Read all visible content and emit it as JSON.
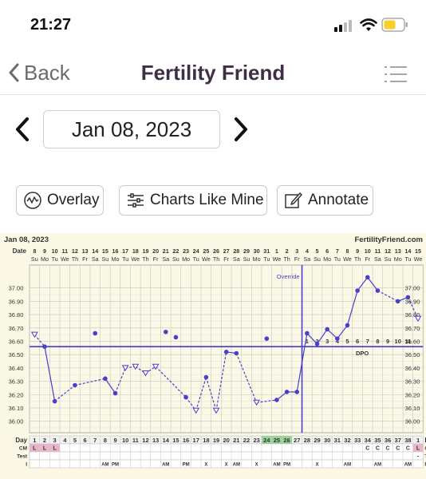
{
  "status_bar": {
    "time": "21:27"
  },
  "nav": {
    "back_label": "Back",
    "title": "Fertility Friend"
  },
  "date_nav": {
    "date": "Jan 08, 2023"
  },
  "actions": {
    "overlay_label": "Overlay",
    "charts_like_mine_label": "Charts Like Mine",
    "annotate_label": "Annotate"
  },
  "chart_header": {
    "start_date": "Jan 08, 2023",
    "brand": "FertilityFriend.com",
    "row_date_label": "Date",
    "override_label": "Override",
    "dpo_label": "DPO"
  },
  "colors": {
    "title": "#3e2f45",
    "chart_bg": "#fbf8e6",
    "line": "#4a3fc8",
    "grid": "#c6c6c6",
    "cm_pink": "#e7b6c9",
    "green": "#9bd49b"
  },
  "chart_data": {
    "type": "line",
    "ylim": [
      35.95,
      37.1
    ],
    "yticks": [
      "37.00",
      "36.90",
      "36.80",
      "36.70",
      "36.60",
      "36.50",
      "36.40",
      "36.30",
      "36.20",
      "36.10",
      "36.00"
    ],
    "date_numbers": [
      "8",
      "9",
      "10",
      "11",
      "12",
      "13",
      "14",
      "15",
      "16",
      "17",
      "18",
      "19",
      "20",
      "21",
      "22",
      "23",
      "24",
      "25",
      "26",
      "27",
      "28",
      "29",
      "30",
      "31",
      "1",
      "2",
      "3",
      "4",
      "5",
      "6",
      "7",
      "8",
      "9",
      "10",
      "11",
      "12",
      "13",
      "14",
      "15"
    ],
    "weekdays": [
      "Su",
      "Mo",
      "Tu",
      "We",
      "Th",
      "Fr",
      "Sa",
      "Su",
      "Mo",
      "Tu",
      "We",
      "Th",
      "Fr",
      "Sa",
      "Su",
      "Mo",
      "Tu",
      "We",
      "Th",
      "Fr",
      "Sa",
      "Su",
      "Mo",
      "Tu",
      "We",
      "Th",
      "Fr",
      "Sa",
      "Su",
      "Mo",
      "Tu",
      "We",
      "Th",
      "Fr",
      "Sa",
      "Su",
      "Mo",
      "Tu",
      "We"
    ],
    "days": [
      "1",
      "2",
      "3",
      "4",
      "5",
      "6",
      "7",
      "8",
      "9",
      "10",
      "11",
      "12",
      "13",
      "14",
      "15",
      "16",
      "17",
      "18",
      "19",
      "20",
      "21",
      "22",
      "23",
      "24",
      "25",
      "26",
      "27",
      "28",
      "29",
      "30",
      "31",
      "32",
      "33",
      "34",
      "35",
      "36",
      "37",
      "38",
      "1"
    ],
    "temps": [
      {
        "day": 1,
        "v": 36.65,
        "s": "open"
      },
      {
        "day": 2,
        "v": 36.56,
        "s": "dot"
      },
      {
        "day": 3,
        "v": 36.15,
        "s": "dot"
      },
      {
        "day": 5,
        "v": 36.27,
        "s": "dot"
      },
      {
        "day": 7,
        "v": 36.66,
        "s": "dot",
        "line": false
      },
      {
        "day": 8,
        "v": 36.32,
        "s": "dot"
      },
      {
        "day": 9,
        "v": 36.21,
        "s": "dot"
      },
      {
        "day": 10,
        "v": 36.4,
        "s": "open"
      },
      {
        "day": 11,
        "v": 36.41,
        "s": "open"
      },
      {
        "day": 12,
        "v": 36.36,
        "s": "open"
      },
      {
        "day": 13,
        "v": 36.41,
        "s": "open"
      },
      {
        "day": 14,
        "v": 36.67,
        "s": "dot",
        "line": false
      },
      {
        "day": 15,
        "v": 36.63,
        "s": "dot",
        "line": false
      },
      {
        "day": 16,
        "v": 36.18,
        "s": "dot"
      },
      {
        "day": 17,
        "v": 36.08,
        "s": "open"
      },
      {
        "day": 18,
        "v": 36.33,
        "s": "dot"
      },
      {
        "day": 19,
        "v": 36.08,
        "s": "open"
      },
      {
        "day": 20,
        "v": 36.52,
        "s": "dot"
      },
      {
        "day": 21,
        "v": 36.51,
        "s": "dot"
      },
      {
        "day": 23,
        "v": 36.14,
        "s": "open"
      },
      {
        "day": 24,
        "v": 36.62,
        "s": "dot",
        "line": false
      },
      {
        "day": 25,
        "v": 36.16,
        "s": "dot"
      },
      {
        "day": 26,
        "v": 36.22,
        "s": "dot"
      },
      {
        "day": 27,
        "v": 36.22,
        "s": "dot"
      },
      {
        "day": 28,
        "v": 36.66,
        "s": "dot"
      },
      {
        "day": 29,
        "v": 36.58,
        "s": "dot"
      },
      {
        "day": 30,
        "v": 36.69,
        "s": "dot"
      },
      {
        "day": 31,
        "v": 36.62,
        "s": "dot"
      },
      {
        "day": 32,
        "v": 36.72,
        "s": "dot"
      },
      {
        "day": 33,
        "v": 36.98,
        "s": "dot"
      },
      {
        "day": 34,
        "v": 37.08,
        "s": "dot"
      },
      {
        "day": 35,
        "v": 36.98,
        "s": "dot"
      },
      {
        "day": 37,
        "v": 36.9,
        "s": "dot"
      },
      {
        "day": 38,
        "v": 36.93,
        "s": "dot"
      },
      {
        "day": 39,
        "v": 36.77,
        "s": "open"
      }
    ],
    "coverline": 36.56,
    "ovulation_day": 27,
    "dpo_numbers": [
      "1",
      "2",
      "3",
      "4",
      "5",
      "6",
      "7",
      "8",
      "9",
      "10",
      "11"
    ],
    "rows": {
      "day_label": "Day",
      "cm_label": "CM",
      "test_label": "Test",
      "i_label": "I",
      "cm": [
        {
          "day": 1,
          "v": "L"
        },
        {
          "day": 2,
          "v": "L"
        },
        {
          "day": 3,
          "v": "L"
        },
        {
          "day": 34,
          "v": "C"
        },
        {
          "day": 35,
          "v": "C"
        },
        {
          "day": 36,
          "v": "C"
        },
        {
          "day": 37,
          "v": "C"
        },
        {
          "day": 38,
          "v": "C"
        },
        {
          "day": 39,
          "v": "L"
        }
      ],
      "test": [
        {
          "day": 39,
          "v": "-"
        }
      ],
      "intercourse": [
        {
          "day": 8,
          "v": "AM"
        },
        {
          "day": 9,
          "v": "PM"
        },
        {
          "day": 14,
          "v": "AM"
        },
        {
          "day": 16,
          "v": "PM"
        },
        {
          "day": 18,
          "v": "X"
        },
        {
          "day": 20,
          "v": "X"
        },
        {
          "day": 21,
          "v": "AM"
        },
        {
          "day": 23,
          "v": "X"
        },
        {
          "day": 25,
          "v": "AM"
        },
        {
          "day": 26,
          "v": "PM"
        },
        {
          "day": 29,
          "v": "X"
        },
        {
          "day": 32,
          "v": "AM"
        },
        {
          "day": 35,
          "v": "AM"
        },
        {
          "day": 38,
          "v": "AM"
        }
      ]
    }
  }
}
